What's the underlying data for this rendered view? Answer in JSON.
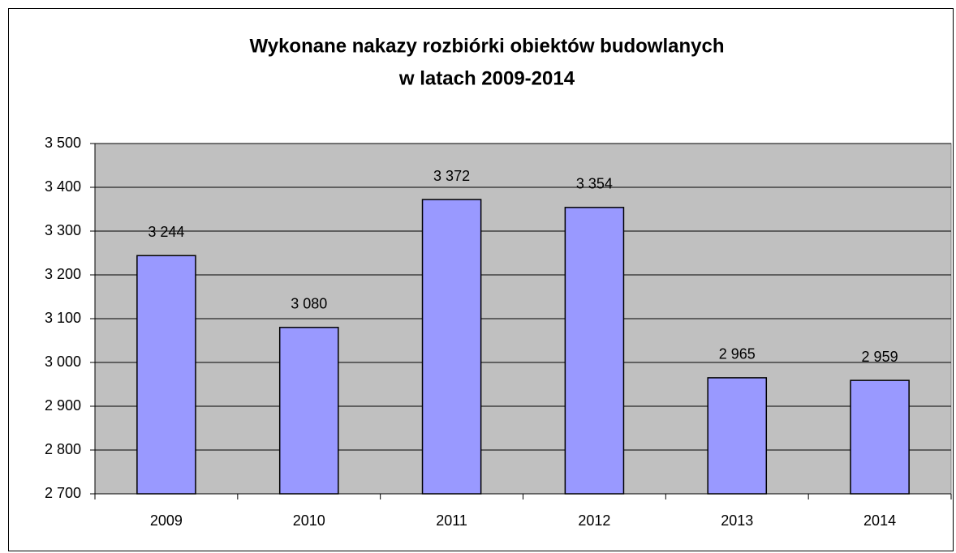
{
  "chart_data": {
    "type": "bar",
    "title": [
      "Wykonane nakazy rozbiórki obiektów budowlanych",
      "w latach 2009-2014"
    ],
    "categories": [
      "2009",
      "2010",
      "2011",
      "2012",
      "2013",
      "2014"
    ],
    "values": [
      3244,
      3080,
      3372,
      3354,
      2965,
      2959
    ],
    "value_labels": [
      "3 244",
      "3 080",
      "3 372",
      "3 354",
      "2 965",
      "2 959"
    ],
    "color": "#9999ff",
    "ylim": [
      2700,
      3500
    ],
    "yticks": [
      {
        "value": 2700,
        "label": "2 700"
      },
      {
        "value": 2800,
        "label": "2 800"
      },
      {
        "value": 2900,
        "label": "2 900"
      },
      {
        "value": 3000,
        "label": "3 000"
      },
      {
        "value": 3100,
        "label": "3 100"
      },
      {
        "value": 3200,
        "label": "3 200"
      },
      {
        "value": 3300,
        "label": "3 300"
      },
      {
        "value": 3400,
        "label": "3 400"
      },
      {
        "value": 3500,
        "label": "3 500"
      }
    ],
    "grid": true
  }
}
